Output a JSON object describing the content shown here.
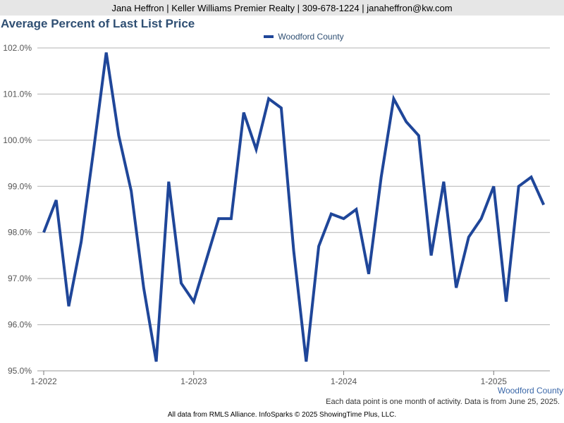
{
  "header": {
    "contact": "Jana Heffron | Keller Williams Premier Realty | 309-678-1224 | janaheffron@kw.com"
  },
  "colors": {
    "series": "#1f4699",
    "grid": "#b3b3b3",
    "title": "#2f4f73"
  },
  "chart_data": {
    "type": "line",
    "title": "Average Percent of Last List Price",
    "xlabel": "",
    "ylabel": "",
    "ylim": [
      95.0,
      102.0
    ],
    "y_ticks": [
      "102.0%",
      "101.0%",
      "100.0%",
      "99.0%",
      "98.0%",
      "97.0%",
      "96.0%",
      "95.0%"
    ],
    "x_tick_labels": [
      "1-2022",
      "1-2023",
      "1-2024",
      "1-2025"
    ],
    "legend_position": "top-center",
    "grid": true,
    "x": [
      "1-2022",
      "2-2022",
      "3-2022",
      "4-2022",
      "5-2022",
      "6-2022",
      "7-2022",
      "8-2022",
      "9-2022",
      "10-2022",
      "11-2022",
      "12-2022",
      "1-2023",
      "2-2023",
      "3-2023",
      "4-2023",
      "5-2023",
      "6-2023",
      "7-2023",
      "8-2023",
      "9-2023",
      "10-2023",
      "11-2023",
      "12-2023",
      "1-2024",
      "2-2024",
      "3-2024",
      "4-2024",
      "5-2024",
      "6-2024",
      "7-2024",
      "8-2024",
      "9-2024",
      "10-2024",
      "11-2024",
      "12-2024",
      "1-2025",
      "2-2025",
      "3-2025",
      "4-2025",
      "5-2025"
    ],
    "series": [
      {
        "name": "Woodford County",
        "values": [
          98.0,
          98.7,
          96.4,
          97.8,
          99.8,
          101.9,
          100.1,
          98.9,
          96.8,
          95.2,
          99.1,
          96.9,
          96.5,
          97.4,
          98.3,
          98.3,
          100.6,
          99.8,
          100.9,
          100.7,
          97.6,
          95.2,
          97.7,
          98.4,
          98.3,
          98.5,
          97.1,
          99.2,
          100.9,
          100.4,
          100.1,
          97.5,
          99.1,
          96.8,
          97.9,
          98.3,
          99.0,
          96.5,
          99.0,
          99.2,
          98.6
        ]
      }
    ]
  },
  "series_end_label": "Woodford County",
  "footnote": "Each data point is one month of activity. Data is from June 25, 2025.",
  "footer": "All data from RMLS Alliance. InfoSparks © 2025 ShowingTime Plus, LLC."
}
